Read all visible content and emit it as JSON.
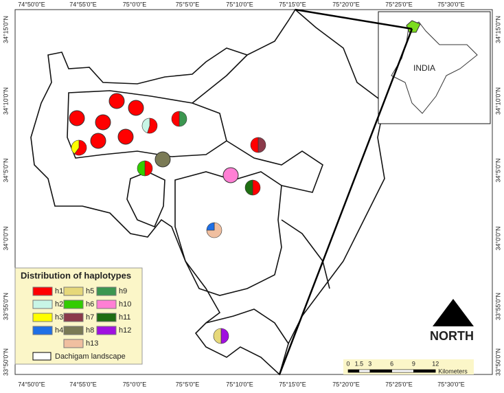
{
  "map": {
    "top_axis_labels": [
      "74°50'0\"E",
      "74°55'0\"E",
      "75°0'0\"E",
      "75°5'0\"E",
      "75°10'0\"E",
      "75°15'0\"E",
      "75°20'0\"E",
      "75°25'0\"E",
      "75°30'0\"E"
    ],
    "bottom_axis_labels": [
      "74°50'0\"E",
      "74°55'0\"E",
      "75°0'0\"E",
      "75°5'0\"E",
      "75°10'0\"E",
      "75°15'0\"E",
      "75°20'0\"E",
      "75°25'0\"E",
      "75°30'0\"E"
    ],
    "left_axis_labels": [
      "34°15'0\"N",
      "34°10'0\"N",
      "34°5'0\"N",
      "34°0'0\"N",
      "33°55'0\"N",
      "33°50'0\"N"
    ],
    "right_axis_labels": [
      "34°15'0\"N",
      "34°10'0\"N",
      "34°5'0\"N",
      "34°0'0\"N",
      "33°55'0\"N",
      "33°50'0\"N"
    ],
    "inset_label": "INDIA",
    "legend": {
      "title": "Distribution of haplotypes",
      "items": [
        {
          "label": "h1",
          "color": "#ff0000"
        },
        {
          "label": "h2",
          "color": "#c8f5e6"
        },
        {
          "label": "h3",
          "color": "#ffff00"
        },
        {
          "label": "h4",
          "color": "#1f6fe6"
        },
        {
          "label": "h5",
          "color": "#e6d87a"
        },
        {
          "label": "h6",
          "color": "#33cc00"
        },
        {
          "label": "h7",
          "color": "#8b3a4a"
        },
        {
          "label": "h8",
          "color": "#7a7a55"
        },
        {
          "label": "h9",
          "color": "#3c9650"
        },
        {
          "label": "h10",
          "color": "#ff7fd4"
        },
        {
          "label": "h11",
          "color": "#1f6e12"
        },
        {
          "label": "h12",
          "color": "#a010e0"
        },
        {
          "label": "h13",
          "color": "#f0bfa0"
        }
      ],
      "boundary_label": "Dachigam landscape"
    },
    "scale_bar": {
      "ticks": [
        0,
        1.5,
        3,
        6,
        9,
        12
      ],
      "unit": "Kilometers"
    },
    "north_label": "NORTH"
  }
}
